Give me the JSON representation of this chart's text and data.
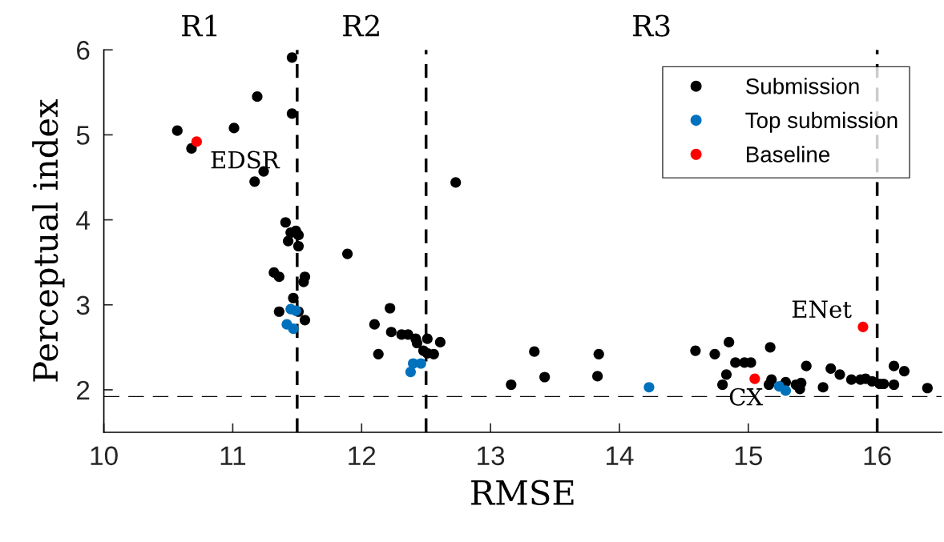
{
  "chart_data": {
    "type": "scatter",
    "xlabel": "RMSE",
    "ylabel": "Perceptual index",
    "xlim": [
      10,
      16.5
    ],
    "xticks": [
      10,
      11,
      12,
      13,
      14,
      15,
      16
    ],
    "ylim": [
      1.5,
      6
    ],
    "yticks": [
      2,
      3,
      4,
      5,
      6
    ],
    "grid": false,
    "legend": "top right",
    "marker": "circle",
    "series": [
      {
        "name": "Submission",
        "color": "#000000",
        "x": [
          10.57,
          10.68,
          11.01,
          11.19,
          11.17,
          11.24,
          11.46,
          11.46,
          11.41,
          11.49,
          11.45,
          11.51,
          11.43,
          11.51,
          11.89,
          11.32,
          11.36,
          11.56,
          11.55,
          11.47,
          11.36,
          11.51,
          11.56,
          12.22,
          12.1,
          12.13,
          12.23,
          12.31,
          12.36,
          12.42,
          12.51,
          12.61,
          12.43,
          12.48,
          12.51,
          12.56,
          12.73,
          13.16,
          13.34,
          13.42,
          13.84,
          13.83,
          14.59,
          14.74,
          14.85,
          14.9,
          14.97,
          15.02,
          14.83,
          14.8,
          15.17,
          15.18,
          15.16,
          15.29,
          15.37,
          15.41,
          15.45,
          15.4,
          15.58,
          15.64,
          15.71,
          15.8,
          15.87,
          15.91,
          15.96,
          16.02,
          16.05,
          16.13,
          16.21,
          16.13,
          16.39
        ],
        "values": [
          5.05,
          4.84,
          5.08,
          5.45,
          4.45,
          4.57,
          5.91,
          5.25,
          3.97,
          3.87,
          3.85,
          3.82,
          3.75,
          3.69,
          3.6,
          3.38,
          3.33,
          3.33,
          3.27,
          3.08,
          2.92,
          2.92,
          2.82,
          2.96,
          2.77,
          2.42,
          2.68,
          2.65,
          2.65,
          2.6,
          2.6,
          2.56,
          2.55,
          2.46,
          2.43,
          2.42,
          4.44,
          2.06,
          2.45,
          2.15,
          2.42,
          2.16,
          2.46,
          2.42,
          2.56,
          2.32,
          2.32,
          2.32,
          2.18,
          2.06,
          2.5,
          2.12,
          2.06,
          2.09,
          2.06,
          2.08,
          2.28,
          2.01,
          2.03,
          2.25,
          2.18,
          2.12,
          2.12,
          2.13,
          2.1,
          2.07,
          2.07,
          2.28,
          2.22,
          2.06,
          2.02
        ]
      },
      {
        "name": "Top submission",
        "color": "#0072bd",
        "x": [
          11.45,
          11.49,
          11.42,
          11.47,
          12.4,
          12.46,
          12.38,
          14.23,
          15.24,
          15.29
        ],
        "values": [
          2.95,
          2.93,
          2.77,
          2.72,
          2.31,
          2.31,
          2.21,
          2.03,
          2.04,
          1.99
        ]
      },
      {
        "name": "Baseline",
        "color": "#ff0000",
        "x": [
          10.72,
          15.05,
          15.89
        ],
        "values": [
          4.92,
          2.13,
          2.74
        ]
      }
    ],
    "ref_lines": [
      {
        "axis": "x",
        "value": 11.5,
        "line_style": "dashed"
      },
      {
        "axis": "x",
        "value": 12.5,
        "line_style": "dashed"
      },
      {
        "axis": "x",
        "value": 16,
        "line_style": "dashed"
      },
      {
        "axis": "y",
        "value": 1.92,
        "line_style": "dashed"
      }
    ],
    "annotations": [
      "R1",
      "R2",
      "R3",
      {
        "text": "EDSR",
        "x": 10.72,
        "y": 4.92
      },
      {
        "text": "CX",
        "x": 15.05,
        "y": 2.13
      },
      {
        "text": "ENet",
        "x": 15.89,
        "y": 2.74
      }
    ]
  }
}
